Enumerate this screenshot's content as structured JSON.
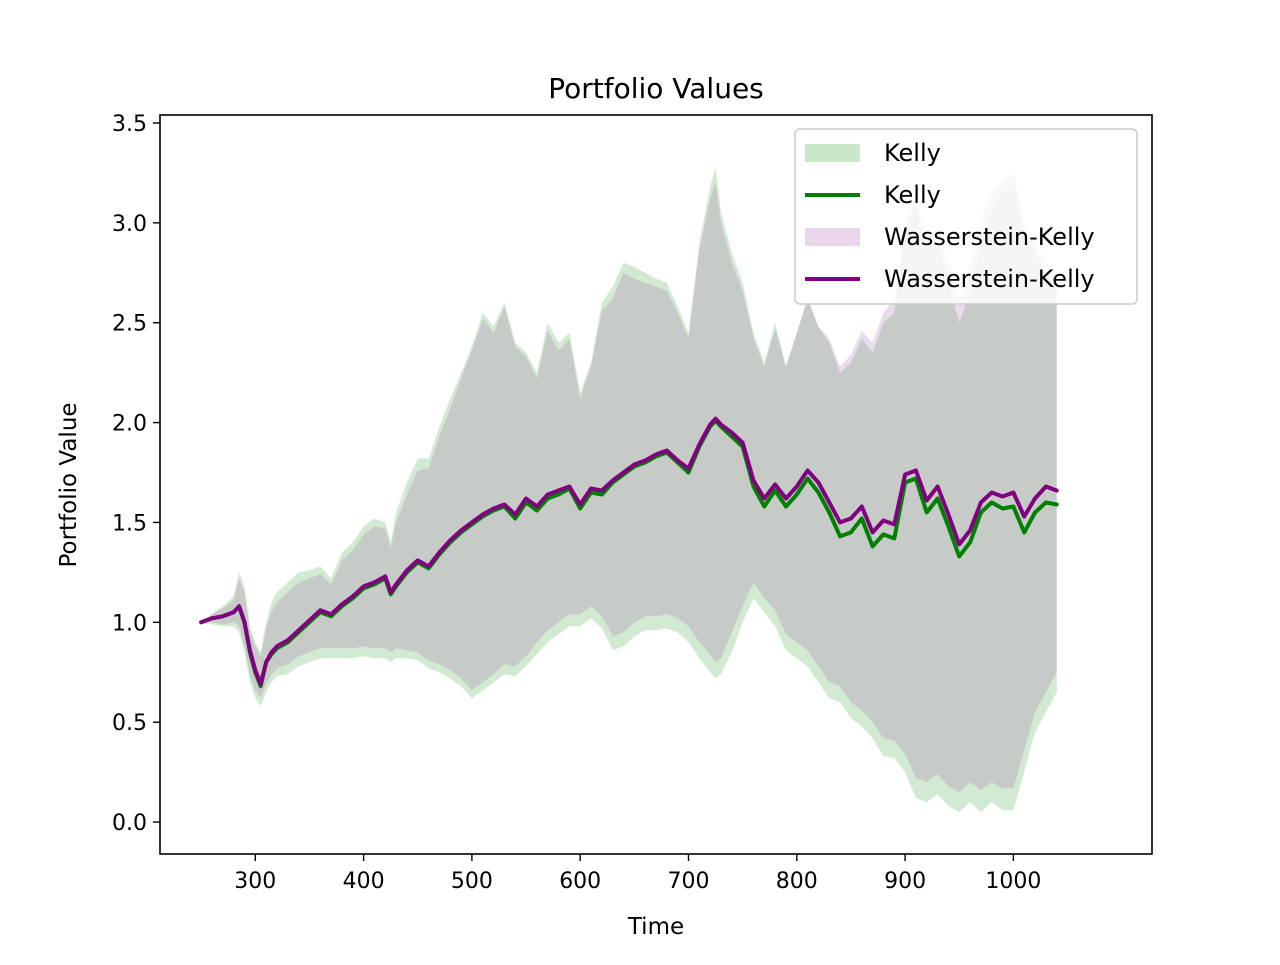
{
  "chart_data": {
    "type": "line",
    "title": "Portfolio Values",
    "xlabel": "Time",
    "ylabel": "Portfolio Value",
    "xlim": [
      212,
      1128
    ],
    "ylim": [
      -0.16,
      3.54
    ],
    "xticks": [
      300,
      400,
      500,
      600,
      700,
      800,
      900,
      1000
    ],
    "yticks": [
      0.0,
      0.5,
      1.0,
      1.5,
      2.0,
      2.5,
      3.0,
      3.5
    ],
    "xtick_labels": [
      "300",
      "400",
      "500",
      "600",
      "700",
      "800",
      "900",
      "1000"
    ],
    "ytick_labels": [
      "0.0",
      "0.5",
      "1.0",
      "1.5",
      "2.0",
      "2.5",
      "3.0",
      "3.5"
    ],
    "grid": false,
    "legend_position": "top-right",
    "legend": [
      {
        "label": "Kelly",
        "kind": "band",
        "color": "#2ca02c"
      },
      {
        "label": "Kelly",
        "kind": "line",
        "color": "#008000"
      },
      {
        "label": "Wasserstein-Kelly",
        "kind": "band",
        "color": "#a05fa8"
      },
      {
        "label": "Wasserstein-Kelly",
        "kind": "line",
        "color": "#800080"
      }
    ],
    "x": [
      250,
      260,
      270,
      280,
      285,
      290,
      295,
      300,
      305,
      310,
      315,
      320,
      330,
      340,
      350,
      360,
      370,
      380,
      390,
      400,
      410,
      420,
      425,
      430,
      440,
      450,
      460,
      470,
      480,
      490,
      500,
      510,
      520,
      530,
      540,
      550,
      560,
      570,
      580,
      590,
      600,
      610,
      620,
      630,
      640,
      650,
      660,
      670,
      680,
      690,
      700,
      710,
      720,
      725,
      730,
      740,
      750,
      760,
      770,
      780,
      790,
      800,
      810,
      820,
      830,
      840,
      850,
      860,
      870,
      880,
      890,
      900,
      910,
      920,
      930,
      940,
      950,
      960,
      970,
      980,
      990,
      1000,
      1010,
      1020,
      1030,
      1040
    ],
    "series": [
      {
        "name": "Kelly",
        "color": "#008000",
        "band_color": "#2ca02c",
        "mean": [
          1.0,
          1.02,
          1.03,
          1.05,
          1.08,
          1.0,
          0.85,
          0.75,
          0.68,
          0.8,
          0.84,
          0.87,
          0.9,
          0.95,
          1.0,
          1.05,
          1.03,
          1.08,
          1.12,
          1.17,
          1.19,
          1.22,
          1.14,
          1.18,
          1.25,
          1.3,
          1.27,
          1.34,
          1.4,
          1.45,
          1.49,
          1.53,
          1.56,
          1.58,
          1.52,
          1.6,
          1.56,
          1.62,
          1.64,
          1.67,
          1.57,
          1.65,
          1.64,
          1.7,
          1.74,
          1.78,
          1.8,
          1.83,
          1.85,
          1.8,
          1.75,
          1.88,
          1.98,
          2.01,
          1.98,
          1.93,
          1.88,
          1.68,
          1.58,
          1.66,
          1.58,
          1.64,
          1.72,
          1.65,
          1.55,
          1.43,
          1.45,
          1.52,
          1.38,
          1.44,
          1.42,
          1.7,
          1.72,
          1.55,
          1.62,
          1.48,
          1.33,
          1.4,
          1.55,
          1.6,
          1.57,
          1.58,
          1.45,
          1.55,
          1.6,
          1.59
        ],
        "upper": [
          1.0,
          1.04,
          1.08,
          1.13,
          1.25,
          1.18,
          0.98,
          0.9,
          0.85,
          1.0,
          1.1,
          1.15,
          1.2,
          1.25,
          1.26,
          1.28,
          1.22,
          1.35,
          1.4,
          1.48,
          1.52,
          1.5,
          1.4,
          1.55,
          1.7,
          1.82,
          1.82,
          1.98,
          2.12,
          2.25,
          2.38,
          2.55,
          2.48,
          2.6,
          2.4,
          2.35,
          2.25,
          2.5,
          2.4,
          2.45,
          2.15,
          2.3,
          2.6,
          2.68,
          2.8,
          2.78,
          2.75,
          2.72,
          2.7,
          2.58,
          2.45,
          2.9,
          3.18,
          3.28,
          3.05,
          2.85,
          2.7,
          2.45,
          2.3,
          2.5,
          2.28,
          2.45,
          2.62,
          2.48,
          2.4,
          2.25,
          2.3,
          2.42,
          2.35,
          2.5,
          2.55,
          2.95,
          3.08,
          2.85,
          2.9,
          2.7,
          2.5,
          2.65,
          2.9,
          3.05,
          3.15,
          3.2,
          2.95,
          2.85,
          2.75,
          2.72
        ],
        "lower": [
          1.0,
          0.99,
          0.98,
          0.98,
          0.95,
          0.85,
          0.7,
          0.62,
          0.58,
          0.65,
          0.7,
          0.73,
          0.74,
          0.78,
          0.8,
          0.82,
          0.82,
          0.82,
          0.82,
          0.83,
          0.82,
          0.82,
          0.8,
          0.82,
          0.82,
          0.81,
          0.77,
          0.75,
          0.72,
          0.68,
          0.62,
          0.66,
          0.7,
          0.74,
          0.73,
          0.78,
          0.84,
          0.9,
          0.94,
          0.98,
          0.98,
          1.02,
          0.97,
          0.86,
          0.88,
          0.93,
          0.96,
          0.96,
          0.97,
          0.95,
          0.9,
          0.82,
          0.75,
          0.72,
          0.74,
          0.85,
          1.0,
          1.12,
          1.05,
          0.98,
          0.86,
          0.82,
          0.78,
          0.7,
          0.62,
          0.6,
          0.52,
          0.48,
          0.42,
          0.33,
          0.32,
          0.25,
          0.12,
          0.1,
          0.14,
          0.08,
          0.05,
          0.1,
          0.05,
          0.1,
          0.06,
          0.06,
          0.25,
          0.45,
          0.55,
          0.65
        ]
      },
      {
        "name": "Wasserstein-Kelly",
        "color": "#800080",
        "band_color": "#a05fa8",
        "mean": [
          1.0,
          1.02,
          1.03,
          1.05,
          1.08,
          1.0,
          0.86,
          0.76,
          0.69,
          0.8,
          0.85,
          0.88,
          0.91,
          0.96,
          1.01,
          1.06,
          1.04,
          1.09,
          1.13,
          1.18,
          1.2,
          1.23,
          1.15,
          1.19,
          1.26,
          1.31,
          1.28,
          1.35,
          1.41,
          1.46,
          1.5,
          1.54,
          1.57,
          1.59,
          1.54,
          1.62,
          1.58,
          1.64,
          1.66,
          1.68,
          1.59,
          1.67,
          1.66,
          1.71,
          1.75,
          1.79,
          1.81,
          1.84,
          1.86,
          1.81,
          1.77,
          1.89,
          1.99,
          2.02,
          1.99,
          1.95,
          1.9,
          1.71,
          1.62,
          1.69,
          1.62,
          1.68,
          1.76,
          1.7,
          1.6,
          1.5,
          1.52,
          1.58,
          1.45,
          1.51,
          1.49,
          1.74,
          1.76,
          1.61,
          1.68,
          1.54,
          1.39,
          1.46,
          1.6,
          1.65,
          1.63,
          1.65,
          1.53,
          1.62,
          1.68,
          1.66
        ],
        "upper": [
          1.0,
          1.04,
          1.07,
          1.11,
          1.22,
          1.15,
          0.96,
          0.88,
          0.83,
          0.97,
          1.05,
          1.1,
          1.15,
          1.2,
          1.22,
          1.24,
          1.19,
          1.31,
          1.36,
          1.44,
          1.48,
          1.47,
          1.37,
          1.5,
          1.64,
          1.76,
          1.77,
          1.93,
          2.07,
          2.22,
          2.36,
          2.52,
          2.45,
          2.58,
          2.38,
          2.33,
          2.22,
          2.46,
          2.36,
          2.42,
          2.12,
          2.28,
          2.56,
          2.62,
          2.75,
          2.72,
          2.7,
          2.68,
          2.66,
          2.55,
          2.42,
          2.86,
          3.12,
          3.2,
          3.0,
          2.8,
          2.66,
          2.42,
          2.28,
          2.47,
          2.28,
          2.45,
          2.62,
          2.48,
          2.42,
          2.28,
          2.34,
          2.46,
          2.4,
          2.55,
          2.62,
          3.0,
          3.12,
          2.92,
          2.98,
          2.8,
          2.62,
          2.78,
          3.02,
          3.15,
          3.22,
          3.25,
          3.0,
          2.9,
          2.8,
          2.75
        ],
        "lower": [
          1.0,
          1.0,
          0.99,
          1.0,
          0.98,
          0.88,
          0.74,
          0.66,
          0.62,
          0.69,
          0.74,
          0.77,
          0.79,
          0.83,
          0.85,
          0.87,
          0.87,
          0.87,
          0.87,
          0.88,
          0.87,
          0.87,
          0.85,
          0.87,
          0.86,
          0.85,
          0.81,
          0.79,
          0.76,
          0.72,
          0.66,
          0.7,
          0.74,
          0.79,
          0.78,
          0.83,
          0.9,
          0.96,
          1.0,
          1.04,
          1.04,
          1.08,
          1.03,
          0.93,
          0.95,
          1.0,
          1.03,
          1.03,
          1.04,
          1.02,
          0.98,
          0.9,
          0.84,
          0.8,
          0.82,
          0.95,
          1.08,
          1.2,
          1.12,
          1.06,
          0.94,
          0.9,
          0.86,
          0.78,
          0.7,
          0.68,
          0.6,
          0.56,
          0.5,
          0.42,
          0.41,
          0.34,
          0.22,
          0.2,
          0.24,
          0.18,
          0.15,
          0.2,
          0.16,
          0.2,
          0.17,
          0.17,
          0.36,
          0.55,
          0.65,
          0.75
        ]
      }
    ]
  }
}
